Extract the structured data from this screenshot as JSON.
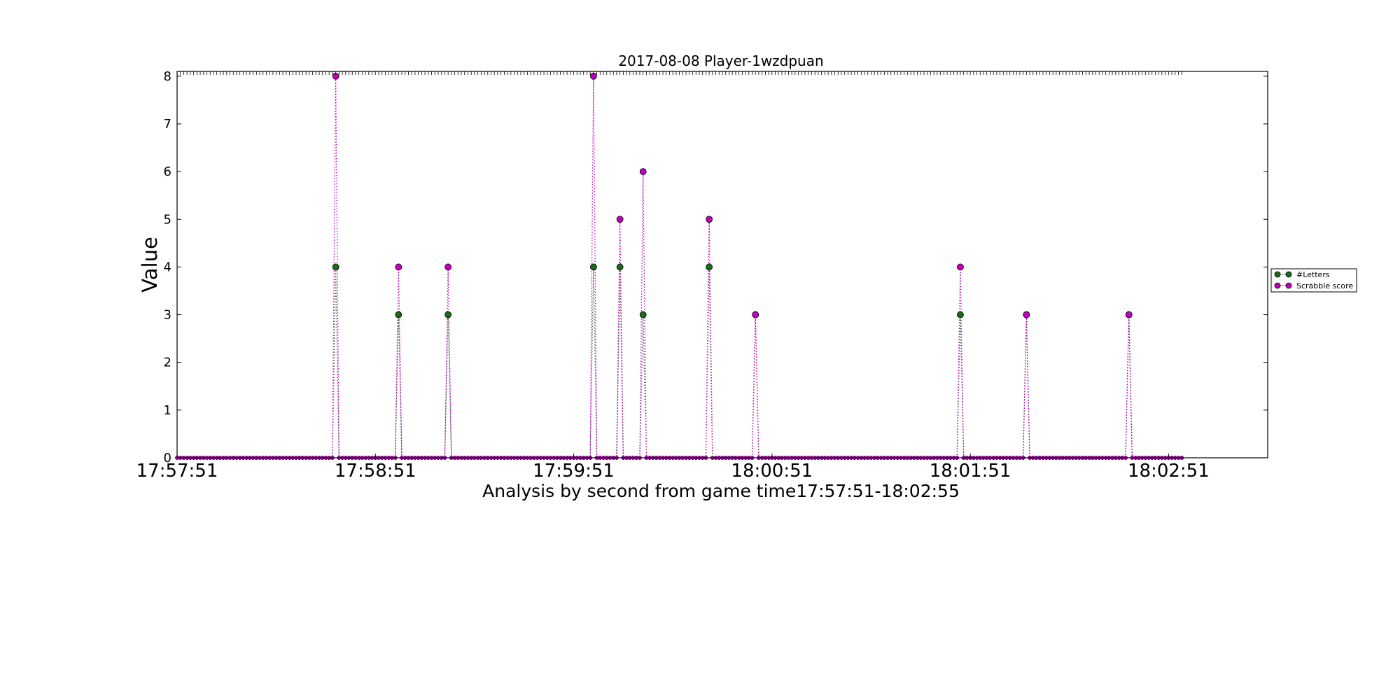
{
  "chart_data": {
    "type": "line",
    "title": "2017-08-08 Player-1wzdpuan",
    "xlabel": "Analysis by second from game time17:57:51-18:02:55",
    "ylabel": "Value",
    "x_start": "17:57:51",
    "x_end": "18:02:55",
    "xlim": [
      "17:57:51",
      "18:03:21"
    ],
    "ylim": [
      0,
      8.1
    ],
    "x_tick_labels": [
      "17:57:51",
      "17:58:51",
      "17:59:51",
      "18:00:51",
      "18:01:51",
      "18:02:51"
    ],
    "y_tick_labels": [
      "0",
      "1",
      "2",
      "3",
      "4",
      "5",
      "6",
      "7",
      "8"
    ],
    "legend_position": "right, outside plot",
    "line_style": "dotted with circle markers",
    "series": [
      {
        "name": "#Letters",
        "color": "#1a6b1a",
        "nonzero_points": [
          {
            "x": "17:58:39",
            "y": 4
          },
          {
            "x": "17:58:58",
            "y": 3
          },
          {
            "x": "17:59:13",
            "y": 3
          },
          {
            "x": "17:59:57",
            "y": 4
          },
          {
            "x": "18:00:05",
            "y": 4
          },
          {
            "x": "18:00:12",
            "y": 3
          },
          {
            "x": "18:00:32",
            "y": 4
          },
          {
            "x": "18:00:46",
            "y": 3
          },
          {
            "x": "18:01:48",
            "y": 3
          },
          {
            "x": "18:02:08",
            "y": 3
          },
          {
            "x": "18:02:39",
            "y": 3
          }
        ]
      },
      {
        "name": "Scrabble score",
        "color": "#c000c0",
        "nonzero_points": [
          {
            "x": "17:58:39",
            "y": 8
          },
          {
            "x": "17:58:58",
            "y": 4
          },
          {
            "x": "17:59:13",
            "y": 4
          },
          {
            "x": "17:59:57",
            "y": 8
          },
          {
            "x": "18:00:05",
            "y": 5
          },
          {
            "x": "18:00:12",
            "y": 6
          },
          {
            "x": "18:00:32",
            "y": 5
          },
          {
            "x": "18:00:46",
            "y": 3
          },
          {
            "x": "18:01:48",
            "y": 4
          },
          {
            "x": "18:02:08",
            "y": 3
          },
          {
            "x": "18:02:39",
            "y": 3
          }
        ]
      }
    ],
    "default_y": 0
  }
}
